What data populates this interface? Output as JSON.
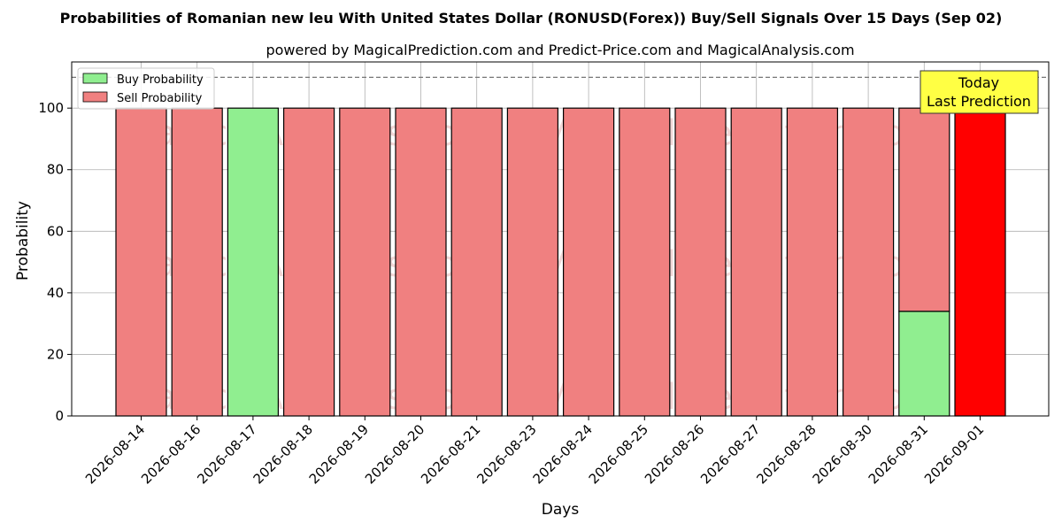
{
  "chart_data": {
    "type": "bar",
    "title": "Probabilities of Romanian new leu With United States Dollar (RONUSD(Forex)) Buy/Sell Signals Over 15 Days (Sep 02)",
    "subtitle": "powered by MagicalPrediction.com and Predict-Price.com and MagicalAnalysis.com",
    "xlabel": "Days",
    "ylabel": "Probability",
    "ylim": [
      0,
      115
    ],
    "yticks": [
      0,
      20,
      40,
      60,
      80,
      100
    ],
    "reference_line": 110,
    "grid": true,
    "legend_position": "top-left",
    "categories": [
      "2026-08-14",
      "2026-08-16",
      "2026-08-17",
      "2026-08-18",
      "2026-08-19",
      "2026-08-20",
      "2026-08-21",
      "2026-08-23",
      "2026-08-24",
      "2026-08-25",
      "2026-08-26",
      "2026-08-27",
      "2026-08-28",
      "2026-08-30",
      "2026-08-31",
      "2026-09-01"
    ],
    "series": [
      {
        "name": "Buy Probability",
        "color": "#90ee90",
        "values": [
          0,
          0,
          100,
          0,
          0,
          0,
          0,
          0,
          0,
          0,
          0,
          0,
          0,
          0,
          34,
          0
        ]
      },
      {
        "name": "Sell Probability",
        "color": "#f08080",
        "values": [
          100,
          100,
          0,
          100,
          100,
          100,
          100,
          100,
          100,
          100,
          100,
          100,
          100,
          100,
          66,
          100
        ]
      }
    ],
    "highlight": {
      "index": 15,
      "color": "#ff0000"
    },
    "annotation": {
      "line1": "Today",
      "line2": "Last Prediction",
      "background": "#ffff44"
    },
    "watermarks": [
      "MagicalAnalysis.com",
      "MagicalPrediction.com"
    ]
  }
}
